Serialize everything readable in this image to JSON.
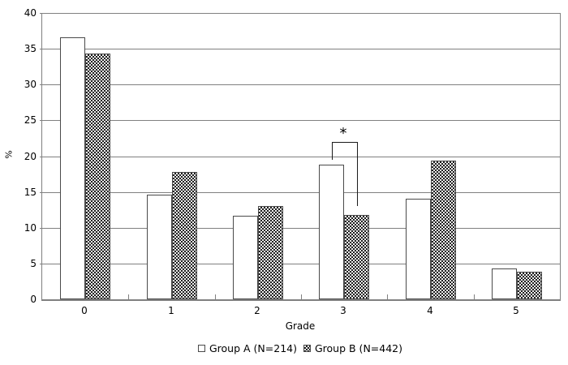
{
  "chart_data": {
    "type": "bar",
    "title": "",
    "xlabel": "Grade",
    "ylabel": "%",
    "categories": [
      "0",
      "1",
      "2",
      "3",
      "4",
      "5"
    ],
    "series": [
      {
        "name": "Group A (N=214)",
        "swatch": "white-fill",
        "values": [
          36.6,
          14.6,
          11.7,
          18.8,
          14.1,
          4.3
        ]
      },
      {
        "name": "Group B (N=442)",
        "swatch": "dot-pattern-fill",
        "values": [
          34.3,
          17.8,
          13.0,
          11.8,
          19.4,
          3.9
        ]
      }
    ],
    "ylim": [
      0,
      40
    ],
    "ytick_step": 5,
    "grid": "horizontal-gridlines",
    "legend_position": "bottom-center",
    "significance_annotation": {
      "text": "*",
      "category": "3",
      "connects": [
        "Group A bar",
        "Group B bar"
      ],
      "bracket_top_value": 22,
      "left_leg_end_value": 19.5,
      "right_leg_end_value": 13
    }
  },
  "colors": {
    "background": "#ffffff",
    "gridline": "#808080",
    "axis": "#808080",
    "bar_border": "#4a4a4a",
    "group_a_fill": "#ffffff",
    "group_b_pattern_dark": "#1f1f1f",
    "group_b_pattern_light": "#ededed",
    "text": "#000000",
    "annotation": "#000000"
  }
}
